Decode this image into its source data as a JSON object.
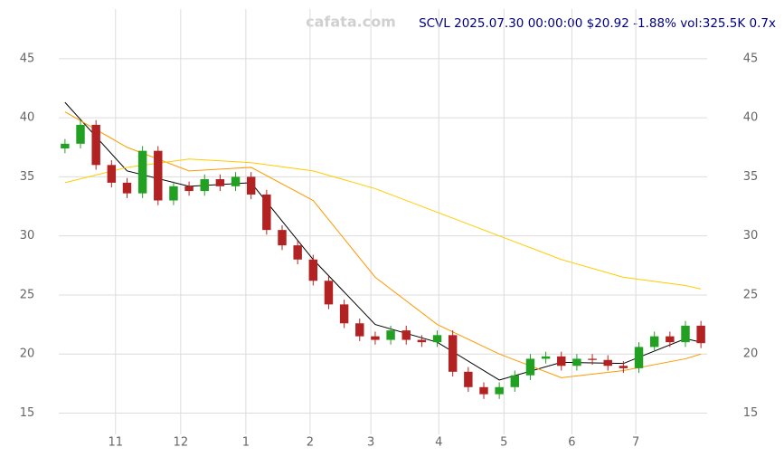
{
  "chart_data": {
    "type": "candlestick",
    "title": "SCVL 2025.07.30 00:00:00 $20.92 -1.88% vol:325.5K 0.7x",
    "watermark": "cafata.com",
    "x": [
      0,
      5,
      10,
      15,
      20,
      25,
      30,
      35,
      40,
      45,
      50,
      55,
      60,
      65,
      70,
      75,
      80,
      85,
      90,
      95,
      100,
      105,
      110,
      115,
      120,
      125,
      130,
      135,
      140,
      145,
      150,
      155,
      160,
      165,
      170,
      175,
      180,
      185,
      190,
      195,
      200,
      205
    ],
    "open": [
      37.4,
      37.8,
      39.4,
      36.0,
      34.5,
      33.6,
      37.2,
      33.0,
      34.2,
      33.8,
      34.8,
      34.2,
      35.0,
      33.5,
      30.5,
      29.2,
      28.0,
      26.2,
      24.2,
      22.6,
      21.5,
      21.2,
      22.0,
      21.2,
      21.0,
      21.6,
      18.5,
      17.2,
      16.6,
      17.2,
      18.2,
      19.6,
      19.8,
      19.0,
      19.6,
      19.5,
      19.0,
      18.8,
      20.6,
      21.5,
      21.0,
      22.4
    ],
    "high": [
      38.2,
      39.8,
      39.8,
      36.4,
      34.9,
      37.6,
      37.6,
      34.6,
      34.6,
      35.2,
      35.2,
      35.4,
      35.4,
      33.9,
      30.9,
      29.6,
      28.4,
      26.6,
      24.6,
      23.0,
      21.9,
      22.4,
      22.4,
      21.6,
      22.0,
      22.0,
      18.9,
      17.6,
      17.6,
      18.6,
      20.0,
      20.2,
      20.2,
      20.0,
      20.0,
      19.9,
      19.4,
      21.0,
      21.9,
      21.9,
      22.8,
      22.8
    ],
    "low": [
      37.0,
      37.4,
      35.6,
      34.1,
      33.2,
      33.2,
      32.6,
      32.6,
      33.4,
      33.4,
      33.8,
      33.8,
      33.1,
      30.1,
      28.8,
      27.6,
      25.8,
      23.8,
      22.2,
      21.1,
      20.8,
      20.8,
      20.8,
      20.6,
      20.6,
      18.1,
      16.8,
      16.2,
      16.2,
      16.8,
      17.8,
      19.2,
      18.6,
      18.6,
      19.1,
      18.6,
      18.4,
      18.4,
      20.2,
      20.6,
      20.6,
      20.5
    ],
    "close": [
      37.8,
      39.4,
      36.0,
      34.5,
      33.6,
      37.2,
      33.0,
      34.2,
      33.8,
      34.8,
      34.2,
      35.0,
      33.5,
      30.5,
      29.2,
      28.0,
      26.2,
      24.2,
      22.6,
      21.5,
      21.2,
      22.0,
      21.2,
      21.0,
      21.6,
      18.5,
      17.2,
      16.6,
      17.2,
      18.2,
      19.6,
      19.8,
      19.0,
      19.6,
      19.5,
      19.0,
      18.8,
      20.6,
      21.5,
      21.0,
      22.4,
      20.92
    ],
    "up_color": "#22a022",
    "down_color": "#b22222",
    "overlays": [
      {
        "color": "#000000",
        "x": [
          0,
          20,
          40,
          60,
          80,
          100,
          120,
          140,
          160,
          180,
          200,
          205
        ],
        "values": [
          41.3,
          35.5,
          34.2,
          34.5,
          28.0,
          22.5,
          21.0,
          17.8,
          19.3,
          19.2,
          21.3,
          21.0
        ]
      },
      {
        "color": "#ff9900",
        "x": [
          0,
          20,
          40,
          60,
          80,
          100,
          120,
          140,
          160,
          180,
          200,
          205
        ],
        "values": [
          40.5,
          37.5,
          35.5,
          35.8,
          33.0,
          26.5,
          22.5,
          20.0,
          18.0,
          18.6,
          19.6,
          20.0
        ]
      },
      {
        "color": "#ffcc00",
        "x": [
          0,
          20,
          40,
          60,
          80,
          100,
          120,
          140,
          160,
          180,
          200,
          205
        ],
        "values": [
          34.5,
          35.8,
          36.5,
          36.2,
          35.5,
          34.0,
          32.0,
          30.0,
          28.0,
          26.5,
          25.8,
          25.5
        ]
      }
    ],
    "xlim": [
      -2,
      207
    ],
    "xticks": [
      {
        "value": 16.3,
        "label": "11"
      },
      {
        "value": 37.3,
        "label": "12"
      },
      {
        "value": 58.3,
        "label": "1"
      },
      {
        "value": 79,
        "label": "2"
      },
      {
        "value": 98.6,
        "label": "3"
      },
      {
        "value": 120.5,
        "label": "4"
      },
      {
        "value": 141.5,
        "label": "5"
      },
      {
        "value": 163.4,
        "label": "6"
      },
      {
        "value": 184,
        "label": "7"
      }
    ],
    "ylim": [
      13.2,
      49.2
    ],
    "yticks": [
      15,
      20,
      25,
      30,
      35,
      40,
      45
    ],
    "grid": true
  }
}
